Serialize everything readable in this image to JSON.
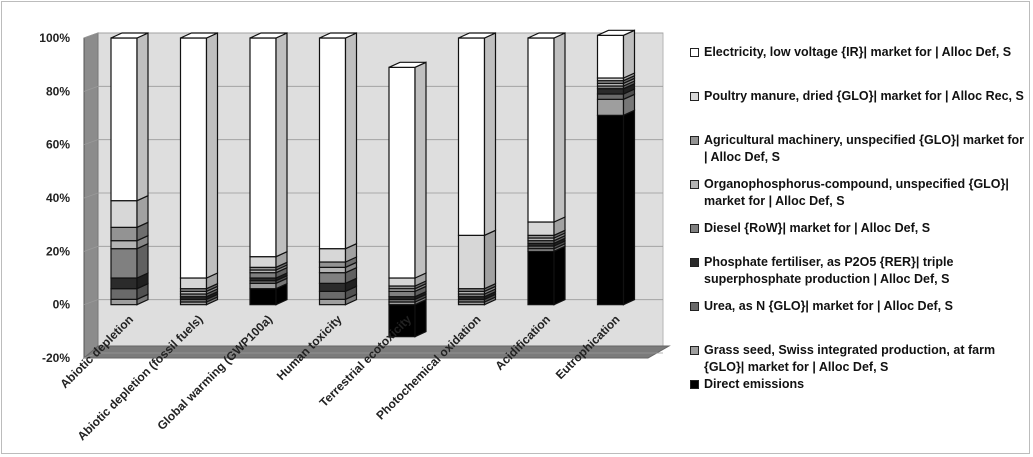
{
  "chart_data": {
    "type": "bar",
    "stacked": true,
    "three_d": true,
    "y_format": "percent",
    "ylim": [
      -20,
      100
    ],
    "yticks": [
      -20,
      0,
      20,
      40,
      60,
      80,
      100
    ],
    "ytick_labels": [
      "-20%",
      "0%",
      "20%",
      "40%",
      "60%",
      "80%",
      "100%"
    ],
    "grid": true,
    "legend_position": "right",
    "categories": [
      "Abiotic depletion",
      "Abiotic depletion (fossil fuels)",
      "Global warming (GWP100a)",
      "Human toxicity",
      "Terrestrial ecotoxicity",
      "Photochemical oxidation",
      "Acidification",
      "Eutrophication"
    ],
    "series": [
      {
        "name": "Direct emissions",
        "color": "#000000",
        "values": [
          0,
          0,
          6,
          0,
          -12,
          0,
          20,
          71
        ]
      },
      {
        "name": "Grass seed, Swiss integrated production, at farm {GLO}| market for | Alloc Def, S",
        "color": "#9e9e9e",
        "values": [
          2,
          1,
          2,
          2,
          1,
          1,
          1,
          6
        ]
      },
      {
        "name": "Urea, as N {GLO}| market for | Alloc Def, S",
        "color": "#6a6a6a",
        "values": [
          4,
          1,
          1,
          3,
          1,
          1,
          1,
          2
        ]
      },
      {
        "name": "Phosphate fertiliser, as P2O5 {RER}| triple superphosphate production | Alloc Def, S",
        "color": "#2b2b2b",
        "values": [
          4,
          1,
          1,
          3,
          1,
          1,
          1,
          2
        ]
      },
      {
        "name": "Diesel {RoW}| market for | Alloc Def, S",
        "color": "#808080",
        "values": [
          11,
          1,
          2,
          4,
          2,
          1,
          1,
          1
        ]
      },
      {
        "name": "Organophosphorus-compound, unspecified {GLO}| market for | Alloc Def, S",
        "color": "#b4b4b4",
        "values": [
          3,
          1,
          1,
          2,
          1,
          1,
          1,
          1
        ]
      },
      {
        "name": "Agricultural machinery, unspecified {GLO}| market for | Alloc Def, S",
        "color": "#939393",
        "values": [
          5,
          1,
          1,
          2,
          1,
          1,
          1,
          1
        ]
      },
      {
        "name": "Poultry manure, dried {GLO}| market for | Alloc Rec, S",
        "color": "#d7d7d7",
        "values": [
          10,
          4,
          4,
          5,
          3,
          20,
          5,
          1
        ]
      },
      {
        "name": "Electricity, low voltage {IR}| market for | Alloc Def, S",
        "color": "#ffffff",
        "values": [
          61,
          90,
          82,
          79,
          79,
          74,
          69,
          16
        ]
      }
    ],
    "legend_order": [
      8,
      7,
      6,
      5,
      4,
      3,
      2,
      1,
      0
    ]
  }
}
